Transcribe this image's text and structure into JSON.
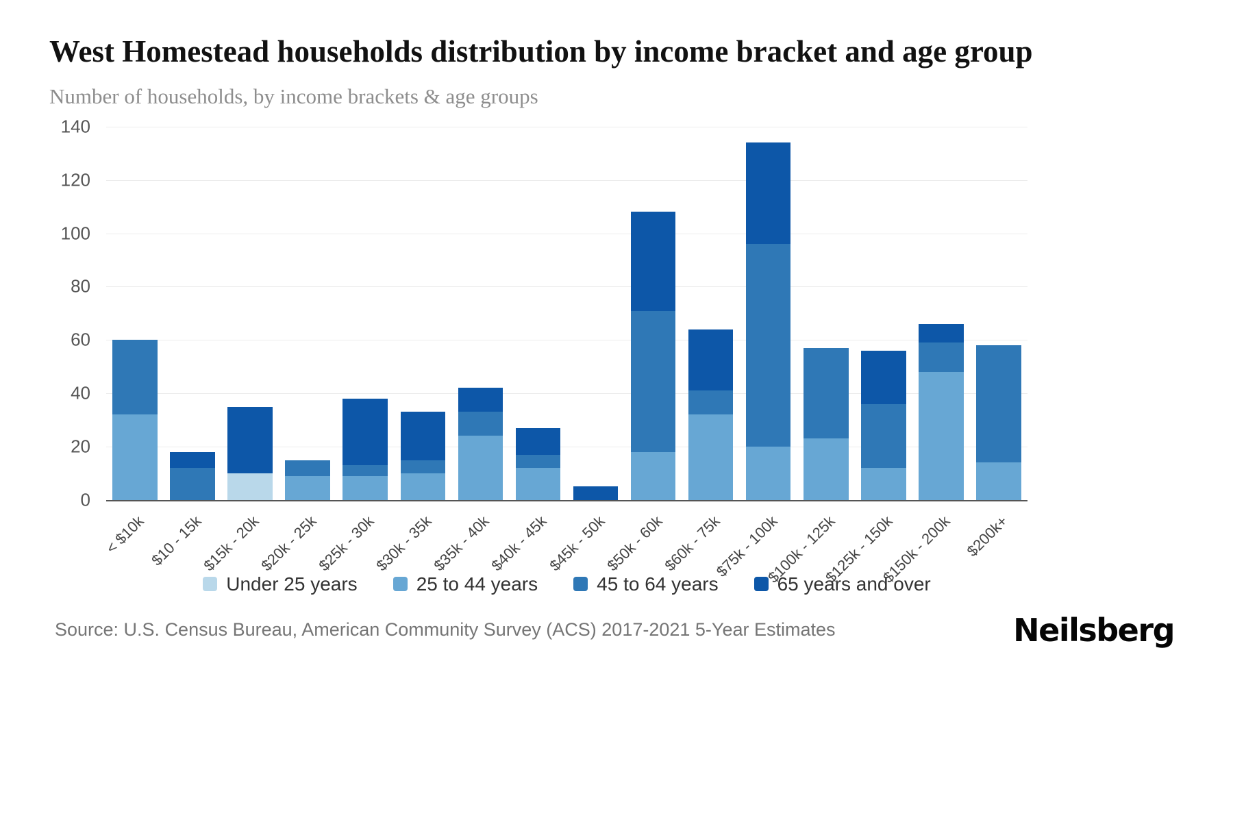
{
  "header": {
    "title": "West Homestead households distribution by income bracket and age group",
    "subtitle": "Number of households, by income brackets & age groups"
  },
  "chart_data": {
    "type": "bar",
    "stacked": true,
    "title": "West Homestead households distribution by income bracket and age group",
    "subtitle": "Number of households, by income brackets & age groups",
    "xlabel": "",
    "ylabel": "Number of households",
    "ylim": [
      0,
      140
    ],
    "yticks": [
      0,
      20,
      40,
      60,
      80,
      100,
      120,
      140
    ],
    "grid": true,
    "legend_position": "bottom",
    "categories": [
      "< $10k",
      "$10 - 15k",
      "$15k - 20k",
      "$20k - 25k",
      "$25k - 30k",
      "$30k - 35k",
      "$35k - 40k",
      "$40k - 45k",
      "$45k - 50k",
      "$50k - 60k",
      "$60k - 75k",
      "$75k - 100k",
      "$100k - 125k",
      "$125k - 150k",
      "$150k - 200k",
      "$200k+"
    ],
    "series": [
      {
        "name": "Under 25 years",
        "color": "#b9d8ea",
        "values": [
          0,
          0,
          10,
          0,
          0,
          0,
          0,
          0,
          0,
          0,
          0,
          0,
          0,
          0,
          0,
          0
        ]
      },
      {
        "name": "25 to 44 years",
        "color": "#67a7d4",
        "values": [
          32,
          0,
          0,
          9,
          9,
          10,
          24,
          12,
          0,
          18,
          32,
          20,
          23,
          12,
          48,
          14
        ]
      },
      {
        "name": "45 to 64 years",
        "color": "#2f78b6",
        "values": [
          28,
          12,
          0,
          6,
          4,
          5,
          9,
          5,
          0,
          53,
          9,
          76,
          34,
          24,
          11,
          44
        ]
      },
      {
        "name": "65 years and over",
        "color": "#0d57a8",
        "values": [
          0,
          6,
          25,
          0,
          25,
          18,
          9,
          10,
          5,
          37,
          23,
          38,
          0,
          20,
          7,
          0
        ]
      }
    ],
    "totals": [
      60,
      18,
      35,
      15,
      38,
      33,
      42,
      27,
      5,
      108,
      64,
      134,
      57,
      56,
      66,
      58
    ]
  },
  "footer": {
    "source": "Source: U.S. Census Bureau, American Community Survey (ACS) 2017-2021 5-Year Estimates",
    "brand": "Neilsberg"
  }
}
